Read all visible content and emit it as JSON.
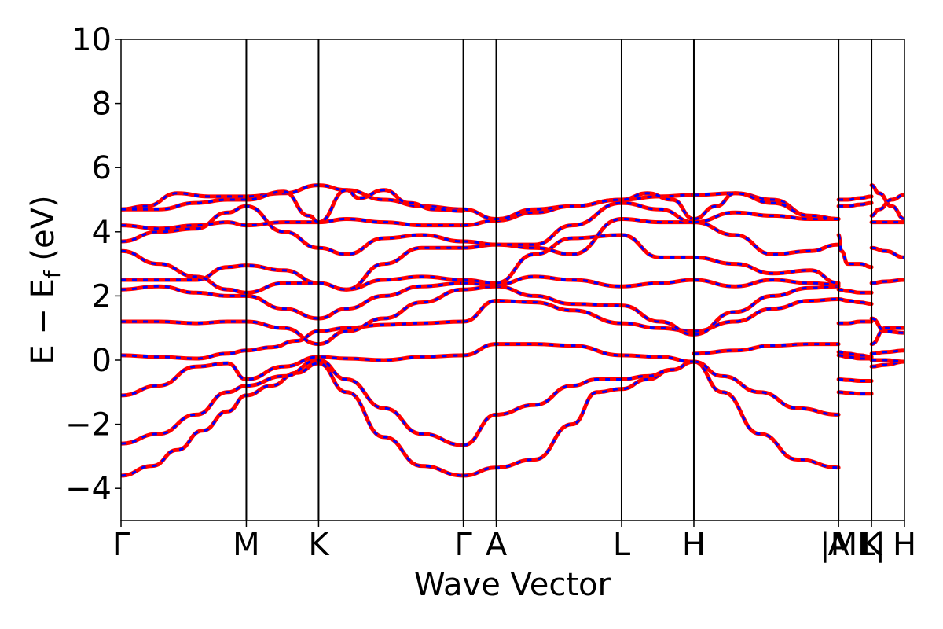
{
  "chart_data": {
    "type": "line",
    "xlabel": "Wave Vector",
    "ylabel": "E − E",
    "ylabel_sub": "f",
    "ylabel_unit": " (eV)",
    "ylim": [
      -5,
      10
    ],
    "yticks": [
      -4,
      -2,
      0,
      2,
      4,
      6,
      8,
      10
    ],
    "ytick_labels": [
      "−4",
      "−2",
      "0",
      "2",
      "4",
      "6",
      "8",
      "10"
    ],
    "grid": false,
    "legend": "none",
    "colors": {
      "spin_up": "#ff0000",
      "spin_down": "#0000ff",
      "vlines": "#000000"
    },
    "kpath": [
      {
        "label": "Γ",
        "x": 0.0
      },
      {
        "label": "M",
        "x": 1.0
      },
      {
        "label": "K",
        "x": 1.577
      },
      {
        "label": "Γ",
        "x": 2.732
      },
      {
        "label": "A",
        "x": 2.995
      },
      {
        "label": "L",
        "x": 3.995
      },
      {
        "label": "H",
        "x": 4.572
      },
      {
        "label": "A",
        "x": 5.727
      },
      {
        "label": "|M",
        "x": 5.727
      },
      {
        "label": "L|",
        "x": 5.99
      },
      {
        "label": "K",
        "x": 5.99
      },
      {
        "label": "H",
        "x": 6.253
      }
    ],
    "vlines_x": [
      1.0,
      1.577,
      2.732,
      2.995,
      3.995,
      4.572,
      5.727,
      5.99
    ],
    "xlim": [
      0,
      6.253
    ],
    "bands": [
      {
        "x": [
          0,
          0.25,
          0.45,
          0.65,
          0.85,
          1.0,
          1.2,
          1.4,
          1.577,
          1.8,
          2.1,
          2.4,
          2.732
        ],
        "y": [
          -3.6,
          -3.3,
          -2.8,
          -2.2,
          -1.6,
          -1.1,
          -0.8,
          -0.4,
          -0.1,
          -1.0,
          -2.4,
          -3.3,
          -3.6
        ]
      },
      {
        "x": [
          2.732,
          2.995,
          3.3,
          3.6,
          3.8,
          3.995,
          4.2,
          4.4,
          4.572
        ],
        "y": [
          -3.6,
          -3.35,
          -3.1,
          -2.0,
          -1.0,
          -0.9,
          -0.6,
          -0.3,
          -0.05
        ]
      },
      {
        "x": [
          4.572,
          4.8,
          5.1,
          5.4,
          5.727
        ],
        "y": [
          -0.05,
          -1.0,
          -2.3,
          -3.1,
          -3.35
        ]
      },
      {
        "x": [
          0,
          0.3,
          0.6,
          0.85,
          1.0,
          1.3,
          1.577,
          1.8,
          2.1,
          2.4,
          2.732
        ],
        "y": [
          -2.6,
          -2.3,
          -1.7,
          -1.0,
          -0.8,
          -0.5,
          0.0,
          -0.6,
          -1.5,
          -2.3,
          -2.65
        ]
      },
      {
        "x": [
          2.732,
          2.995,
          3.3,
          3.6,
          3.8,
          3.995,
          4.2,
          4.4,
          4.572
        ],
        "y": [
          -2.65,
          -1.7,
          -1.4,
          -0.8,
          -0.6,
          -0.6,
          -0.5,
          -0.3,
          -0.05
        ]
      },
      {
        "x": [
          4.572,
          4.8,
          5.1,
          5.4,
          5.727
        ],
        "y": [
          -0.05,
          -0.5,
          -1.0,
          -1.5,
          -1.7
        ]
      },
      {
        "x": [
          0,
          0.3,
          0.6,
          0.85,
          1.0,
          1.3,
          1.577,
          1.8,
          2.1,
          2.4,
          2.732
        ],
        "y": [
          -1.1,
          -0.8,
          -0.2,
          -0.1,
          -0.6,
          -0.2,
          0.1,
          0.05,
          0.0,
          0.1,
          0.15
        ]
      },
      {
        "x": [
          2.732,
          2.995,
          3.3,
          3.6,
          3.995,
          4.3,
          4.572
        ],
        "y": [
          0.15,
          0.5,
          0.5,
          0.45,
          0.15,
          0.1,
          -0.05
        ]
      },
      {
        "x": [
          4.572,
          4.9,
          5.2,
          5.5,
          5.727
        ],
        "y": [
          0.2,
          0.3,
          0.45,
          0.5,
          0.5
        ]
      },
      {
        "x": [
          0,
          0.3,
          0.6,
          0.85,
          1.0,
          1.2,
          1.4,
          1.577,
          1.8,
          2.1,
          2.4,
          2.732
        ],
        "y": [
          0.15,
          0.1,
          0.05,
          0.2,
          0.3,
          0.4,
          0.6,
          0.9,
          1.0,
          1.1,
          1.15,
          1.2
        ]
      },
      {
        "x": [
          2.732,
          2.995,
          3.3,
          3.6,
          3.995,
          4.3,
          4.572
        ],
        "y": [
          1.2,
          1.85,
          1.8,
          1.55,
          1.15,
          1.0,
          0.9
        ]
      },
      {
        "x": [
          4.572,
          4.9,
          5.2,
          5.5,
          5.727
        ],
        "y": [
          0.9,
          1.2,
          1.6,
          1.85,
          1.9
        ]
      },
      {
        "x": [
          0,
          0.3,
          0.6,
          0.85,
          1.0,
          1.3,
          1.577,
          1.8,
          2.1,
          2.4,
          2.732
        ],
        "y": [
          1.2,
          1.2,
          1.15,
          1.2,
          1.2,
          1.0,
          0.5,
          0.9,
          1.3,
          1.8,
          2.2
        ]
      },
      {
        "x": [
          2.732,
          2.995,
          3.3,
          3.6,
          3.995,
          4.3,
          4.572
        ],
        "y": [
          2.2,
          2.3,
          2.0,
          1.75,
          1.7,
          1.2,
          0.8
        ]
      },
      {
        "x": [
          4.572,
          4.9,
          5.2,
          5.5,
          5.727
        ],
        "y": [
          0.8,
          1.5,
          2.0,
          2.25,
          2.3
        ]
      },
      {
        "x": [
          0,
          0.3,
          0.6,
          0.85,
          1.0,
          1.3,
          1.577,
          1.8,
          2.1,
          2.4,
          2.732
        ],
        "y": [
          2.2,
          2.3,
          2.1,
          2.0,
          2.0,
          1.6,
          1.3,
          1.6,
          2.0,
          2.3,
          2.4
        ]
      },
      {
        "x": [
          2.732,
          2.995,
          3.3,
          3.6,
          3.995,
          4.3,
          4.572
        ],
        "y": [
          2.4,
          2.35,
          2.6,
          2.5,
          2.3,
          2.4,
          2.5
        ]
      },
      {
        "x": [
          4.572,
          4.9,
          5.2,
          5.5,
          5.727
        ],
        "y": [
          2.5,
          2.3,
          2.5,
          2.4,
          2.35
        ]
      },
      {
        "x": [
          0,
          0.3,
          0.6,
          0.85,
          1.0,
          1.3,
          1.577,
          1.8,
          2.1,
          2.4,
          2.732
        ],
        "y": [
          2.5,
          2.5,
          2.5,
          2.9,
          2.95,
          2.8,
          2.4,
          2.2,
          2.5,
          2.6,
          2.5
        ]
      },
      {
        "x": [
          2.732,
          2.995,
          3.3,
          3.6,
          3.995,
          4.3,
          4.572
        ],
        "y": [
          2.5,
          2.4,
          3.3,
          3.8,
          3.9,
          3.2,
          3.2
        ]
      },
      {
        "x": [
          4.572,
          4.9,
          5.2,
          5.5,
          5.727
        ],
        "y": [
          3.2,
          3.0,
          2.7,
          2.8,
          2.4
        ]
      },
      {
        "x": [
          0,
          0.3,
          0.6,
          0.85,
          1.0,
          1.3,
          1.577,
          1.8,
          2.1,
          2.4,
          2.732
        ],
        "y": [
          3.4,
          3.0,
          2.6,
          2.2,
          2.1,
          2.4,
          2.4,
          2.2,
          3.0,
          3.5,
          3.5
        ]
      },
      {
        "x": [
          2.732,
          2.995,
          3.3,
          3.6,
          3.995,
          4.3,
          4.572
        ],
        "y": [
          3.5,
          3.6,
          3.5,
          3.3,
          4.4,
          4.3,
          4.3
        ]
      },
      {
        "x": [
          4.572,
          4.9,
          5.2,
          5.5,
          5.727
        ],
        "y": [
          4.3,
          3.9,
          3.3,
          3.4,
          3.6
        ]
      },
      {
        "x": [
          0,
          0.3,
          0.6,
          0.85,
          1.0,
          1.3,
          1.577,
          1.8,
          2.1,
          2.4,
          2.732
        ],
        "y": [
          3.7,
          4.0,
          4.1,
          4.6,
          4.8,
          4.0,
          3.5,
          3.3,
          3.8,
          3.9,
          3.7
        ]
      },
      {
        "x": [
          2.732,
          2.995,
          3.3,
          3.6,
          3.995,
          4.3,
          4.572
        ],
        "y": [
          3.7,
          3.6,
          3.6,
          4.2,
          4.9,
          4.7,
          4.3
        ]
      },
      {
        "x": [
          4.572,
          4.9,
          5.2,
          5.5,
          5.727
        ],
        "y": [
          4.3,
          4.6,
          4.5,
          4.4,
          4.4
        ]
      },
      {
        "x": [
          0,
          0.3,
          0.6,
          0.85,
          1.0,
          1.3,
          1.577,
          1.8,
          2.1,
          2.4,
          2.732
        ],
        "y": [
          4.2,
          4.1,
          4.2,
          4.3,
          4.2,
          4.3,
          4.3,
          4.4,
          4.3,
          4.2,
          4.2
        ]
      },
      {
        "x": [
          2.732,
          2.995,
          3.3,
          3.6,
          3.995,
          4.3,
          4.572
        ],
        "y": [
          4.2,
          4.35,
          4.6,
          4.8,
          5.0,
          5.1,
          5.15
        ]
      },
      {
        "x": [
          4.572,
          4.9,
          5.2,
          5.5,
          5.727
        ],
        "y": [
          5.15,
          5.2,
          5.0,
          4.5,
          4.4
        ]
      },
      {
        "x": [
          0,
          0.2,
          0.45,
          0.7,
          1.0,
          1.3,
          1.577,
          1.8,
          2.1,
          2.4,
          2.732
        ],
        "y": [
          4.7,
          4.8,
          5.2,
          5.1,
          5.1,
          5.2,
          5.45,
          5.3,
          5.0,
          4.8,
          4.7
        ]
      },
      {
        "x": [
          2.732,
          2.995,
          3.3,
          3.6,
          3.995,
          4.2,
          4.4,
          4.572
        ],
        "y": [
          4.7,
          4.4,
          4.7,
          4.8,
          5.0,
          5.2,
          5.0,
          4.4
        ]
      },
      {
        "x": [
          4.572,
          4.75,
          4.9,
          5.2,
          5.5,
          5.727
        ],
        "y": [
          4.4,
          4.8,
          5.2,
          4.9,
          4.5,
          4.4
        ]
      },
      {
        "x": [
          0,
          0.3,
          0.6,
          0.85,
          1.0,
          1.3,
          1.5,
          1.577,
          1.8,
          1.9,
          2.1,
          2.3,
          2.5,
          2.732
        ],
        "y": [
          4.7,
          4.7,
          4.9,
          5.0,
          5.0,
          5.25,
          4.5,
          4.3,
          5.3,
          5.05,
          5.3,
          4.9,
          4.7,
          4.65
        ]
      },
      {
        "x": [
          5.727,
          5.75,
          5.8,
          5.9,
          5.99
        ],
        "y": [
          3.9,
          3.4,
          3.0,
          3.0,
          2.9
        ]
      },
      {
        "x": [
          5.727,
          5.8,
          5.9,
          5.99
        ],
        "y": [
          2.2,
          2.15,
          2.1,
          2.1
        ]
      },
      {
        "x": [
          5.727,
          5.8,
          5.9,
          5.99
        ],
        "y": [
          1.9,
          1.85,
          1.8,
          1.75
        ]
      },
      {
        "x": [
          5.727,
          5.8,
          5.9,
          5.99
        ],
        "y": [
          1.15,
          1.15,
          1.2,
          1.2
        ]
      },
      {
        "x": [
          5.727,
          5.8,
          5.9,
          5.99
        ],
        "y": [
          0.25,
          0.2,
          0.15,
          0.1
        ]
      },
      {
        "x": [
          5.727,
          5.8,
          5.9,
          5.99
        ],
        "y": [
          0.15,
          0.1,
          0.05,
          0.05
        ]
      },
      {
        "x": [
          5.727,
          5.8,
          5.9,
          5.99
        ],
        "y": [
          -0.6,
          -0.62,
          -0.65,
          -0.65
        ]
      },
      {
        "x": [
          5.727,
          5.8,
          5.9,
          5.99
        ],
        "y": [
          -1.0,
          -1.02,
          -1.05,
          -1.05
        ]
      },
      {
        "x": [
          5.727,
          5.8,
          5.9,
          5.99
        ],
        "y": [
          4.8,
          4.8,
          4.85,
          4.9
        ]
      },
      {
        "x": [
          5.727,
          5.8,
          5.9,
          5.99
        ],
        "y": [
          5.0,
          5.0,
          5.05,
          5.1
        ]
      },
      {
        "x": [
          5.99,
          6.05,
          6.15,
          6.253
        ],
        "y": [
          5.45,
          5.2,
          4.8,
          4.4
        ]
      },
      {
        "x": [
          5.99,
          6.05,
          6.15,
          6.253
        ],
        "y": [
          4.5,
          4.7,
          5.0,
          5.15
        ]
      },
      {
        "x": [
          5.99,
          6.1,
          6.253
        ],
        "y": [
          4.3,
          4.3,
          4.3
        ]
      },
      {
        "x": [
          5.99,
          6.1,
          6.253
        ],
        "y": [
          3.5,
          3.4,
          3.2
        ]
      },
      {
        "x": [
          5.99,
          6.1,
          6.253
        ],
        "y": [
          2.4,
          2.45,
          2.5
        ]
      },
      {
        "x": [
          5.99,
          6.1,
          6.253
        ],
        "y": [
          0.5,
          1.0,
          1.0
        ]
      },
      {
        "x": [
          5.99,
          6.1,
          6.253
        ],
        "y": [
          1.3,
          0.9,
          0.85
        ]
      },
      {
        "x": [
          5.99,
          6.1,
          6.253
        ],
        "y": [
          0.2,
          0.25,
          0.3
        ]
      },
      {
        "x": [
          5.99,
          6.1,
          6.253
        ],
        "y": [
          -0.2,
          -0.15,
          -0.05
        ]
      },
      {
        "x": [
          5.99,
          6.1,
          6.253
        ],
        "y": [
          0.0,
          0.0,
          -0.05
        ]
      }
    ]
  }
}
